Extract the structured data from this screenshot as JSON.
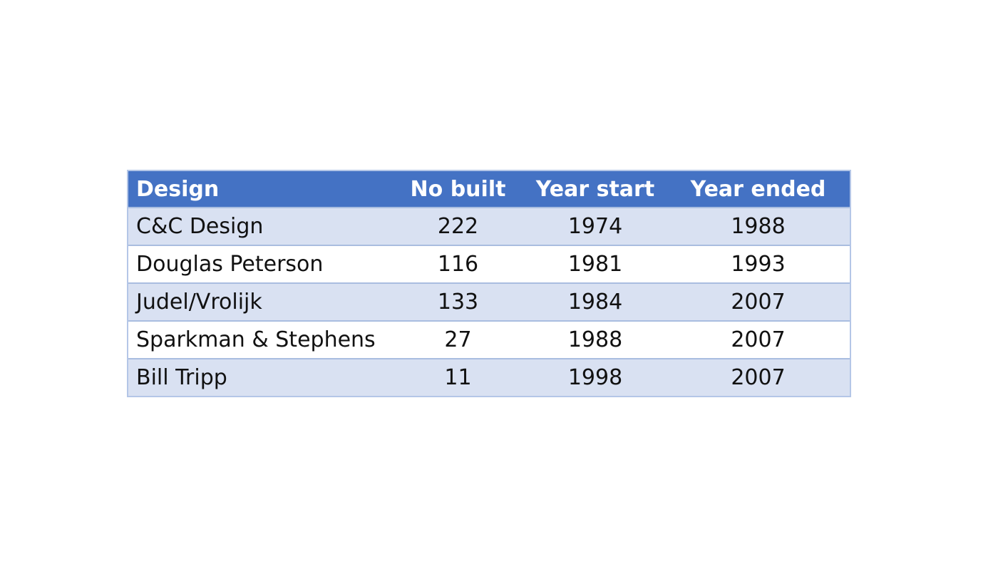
{
  "table": {
    "headers": [
      "Design",
      "No built",
      "Year start",
      "Year ended"
    ],
    "rows": [
      [
        "C&C Design",
        "222",
        "1974",
        "1988"
      ],
      [
        "Douglas Peterson",
        "116",
        "1981",
        "1993"
      ],
      [
        "Judel/Vrolijk",
        "133",
        "1984",
        "2007"
      ],
      [
        "Sparkman & Stephens",
        "27",
        "1988",
        "2007"
      ],
      [
        "Bill Tripp",
        "11",
        "1998",
        "2007"
      ]
    ]
  },
  "colors": {
    "header_bg": "#4472c4",
    "header_text": "#ffffff",
    "band_row": "#d9e1f2",
    "plain_row": "#ffffff",
    "border": "#b4c6e7"
  }
}
